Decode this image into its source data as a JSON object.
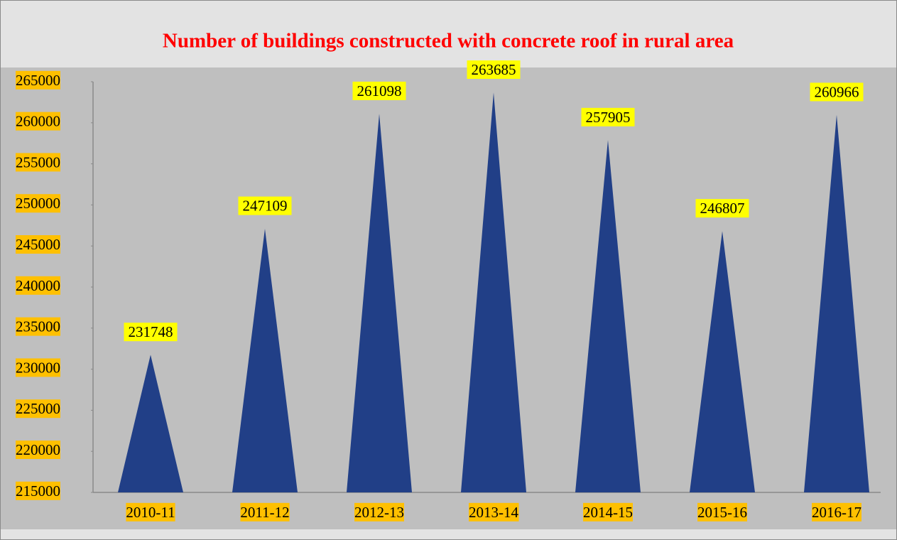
{
  "chart_data": {
    "type": "triangle_bar",
    "title": "Number of buildings constructed with concrete roof in rural area",
    "categories": [
      "2010-11",
      "2011-12",
      "2012-13",
      "2013-14",
      "2014-15",
      "2015-16",
      "2016-17"
    ],
    "values": [
      231748,
      247109,
      261098,
      263685,
      257905,
      246807,
      260966
    ],
    "color": "#213f87",
    "ylim": [
      215000,
      265000
    ],
    "yticks": [
      215000,
      220000,
      225000,
      230000,
      235000,
      240000,
      245000,
      250000,
      255000,
      260000,
      265000
    ],
    "grid": false
  }
}
